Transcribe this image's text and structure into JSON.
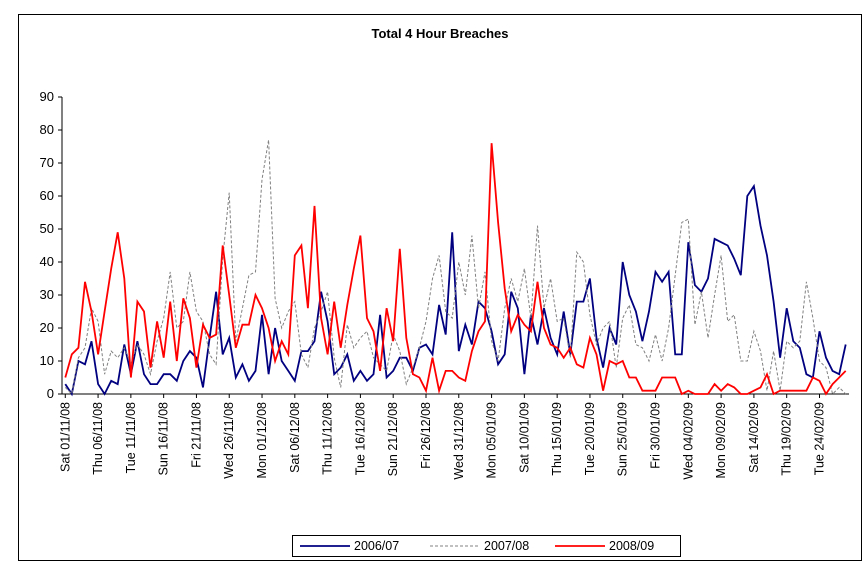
{
  "chart_data": {
    "type": "line",
    "title": "Total 4 Hour Breaches",
    "categories": [
      "Sat 01/11/08",
      null,
      null,
      null,
      null,
      "Thu 06/11/08",
      null,
      null,
      null,
      null,
      "Tue 11/11/08",
      null,
      null,
      null,
      null,
      "Sun 16/11/08",
      null,
      null,
      null,
      null,
      "Fri 21/11/08",
      null,
      null,
      null,
      null,
      "Wed 26/11/08",
      null,
      null,
      null,
      null,
      "Mon 01/12/08",
      null,
      null,
      null,
      null,
      "Sat 06/12/08",
      null,
      null,
      null,
      null,
      "Thu 11/12/08",
      null,
      null,
      null,
      null,
      "Tue 16/12/08",
      null,
      null,
      null,
      null,
      "Sun 21/12/08",
      null,
      null,
      null,
      null,
      "Fri 26/12/08",
      null,
      null,
      null,
      null,
      "Wed 31/12/08",
      null,
      null,
      null,
      null,
      "Mon 05/01/09",
      null,
      null,
      null,
      null,
      "Sat 10/01/09",
      null,
      null,
      null,
      null,
      "Thu 15/01/09",
      null,
      null,
      null,
      null,
      "Tue 20/01/09",
      null,
      null,
      null,
      null,
      "Sun 25/01/09",
      null,
      null,
      null,
      null,
      "Fri 30/01/09",
      null,
      null,
      null,
      null,
      "Wed 04/02/09",
      null,
      null,
      null,
      null,
      "Mon 09/02/09",
      null,
      null,
      null,
      null,
      "Sat 14/02/09",
      null,
      null,
      null,
      null,
      "Thu 19/02/09",
      null,
      null,
      null,
      null,
      "Tue 24/02/09",
      null,
      null,
      null,
      null
    ],
    "series": [
      {
        "name": "2006/07",
        "color": "#000080",
        "line_style": "solid",
        "values": [
          3,
          0,
          10,
          9,
          16,
          3,
          0,
          4,
          3,
          15,
          6,
          16,
          6,
          3,
          3,
          6,
          6,
          4,
          10,
          13,
          11,
          2,
          17,
          31,
          12,
          17,
          5,
          9,
          4,
          7,
          24,
          6,
          20,
          10,
          7,
          4,
          13,
          13,
          16,
          31,
          22,
          6,
          8,
          12,
          4,
          7,
          4,
          6,
          24,
          5,
          7,
          11,
          11,
          7,
          14,
          15,
          12,
          27,
          18,
          49,
          13,
          21,
          15,
          28,
          26,
          19,
          9,
          12,
          31,
          26,
          6,
          24,
          15,
          26,
          17,
          12,
          25,
          12,
          28,
          28,
          35,
          17,
          8,
          20,
          15,
          40,
          30,
          25,
          16,
          25,
          37,
          34,
          37,
          12,
          12,
          46,
          33,
          31,
          35,
          47,
          46,
          45,
          41,
          36,
          60,
          63,
          51,
          42,
          28,
          11,
          26,
          16,
          14,
          6,
          5,
          19,
          11,
          7,
          6,
          15
        ]
      },
      {
        "name": "2007/08",
        "color": "#808080",
        "line_style": "dotted",
        "values": [
          2,
          0,
          11,
          14,
          26,
          22,
          6,
          13,
          11,
          14,
          9,
          15,
          12,
          6,
          16,
          23,
          37,
          20,
          22,
          37,
          25,
          22,
          12,
          9,
          41,
          61,
          16,
          26,
          36,
          37,
          65,
          77,
          29,
          20,
          25,
          28,
          12,
          8,
          20,
          25,
          31,
          11,
          2,
          21,
          14,
          17,
          19,
          11,
          9,
          7,
          18,
          13,
          3,
          8,
          14,
          22,
          35,
          42,
          25,
          23,
          40,
          30,
          48,
          26,
          37,
          16,
          10,
          26,
          35,
          28,
          38,
          23,
          51,
          26,
          35,
          22,
          23,
          11,
          43,
          40,
          24,
          15,
          20,
          22,
          8,
          23,
          27,
          15,
          14,
          10,
          18,
          10,
          20,
          36,
          52,
          53,
          21,
          31,
          17,
          30,
          42,
          22,
          24,
          10,
          10,
          19,
          13,
          1,
          13,
          1,
          16,
          14,
          16,
          34,
          23,
          10,
          8,
          0,
          2,
          0
        ]
      },
      {
        "name": "2008/09",
        "color": "#ff0000",
        "line_style": "solid",
        "values": [
          5,
          12,
          14,
          34,
          25,
          12,
          25,
          38,
          49,
          35,
          5,
          28,
          25,
          8,
          22,
          11,
          28,
          10,
          29,
          23,
          8,
          21,
          17,
          18,
          45,
          30,
          14,
          21,
          21,
          30,
          26,
          20,
          10,
          16,
          12,
          42,
          45,
          26,
          57,
          23,
          12,
          28,
          14,
          27,
          38,
          48,
          23,
          19,
          7,
          26,
          16,
          44,
          17,
          6,
          5,
          1,
          11,
          1,
          7,
          7,
          5,
          4,
          13,
          19,
          22,
          76,
          52,
          32,
          19,
          24,
          21,
          19,
          34,
          20,
          15,
          14,
          11,
          14,
          9,
          8,
          17,
          12,
          1,
          10,
          9,
          10,
          5,
          5,
          1,
          1,
          1,
          5,
          5,
          5,
          0,
          1,
          0,
          0,
          0,
          3,
          1,
          3,
          2,
          0,
          0,
          1,
          2,
          6,
          0,
          1,
          1,
          1,
          1,
          1,
          5,
          4,
          0,
          3,
          5,
          7
        ]
      }
    ],
    "ylim": [
      0,
      90
    ],
    "yticks": [
      0,
      10,
      20,
      30,
      40,
      50,
      60,
      70,
      80,
      90
    ],
    "grid": false,
    "legend": "bottom"
  }
}
